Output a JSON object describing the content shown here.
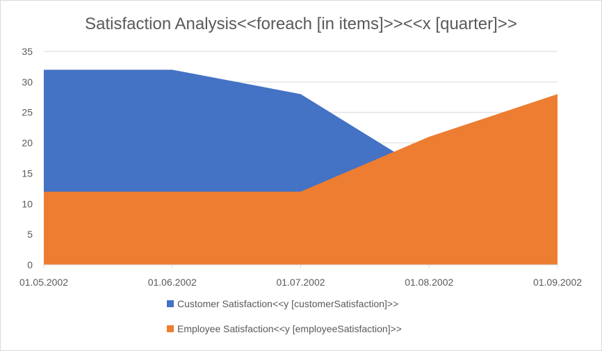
{
  "chart_data": {
    "type": "area",
    "title": "Satisfaction Analysis<<foreach [in items]>><<x [quarter]>>",
    "xlabel": "",
    "ylabel": "",
    "categories": [
      "01.05.2002",
      "01.06.2002",
      "01.07.2002",
      "01.08.2002",
      "01.09.2002"
    ],
    "series": [
      {
        "name": "Customer Satisfaction<<y [customerSatisfaction]>>",
        "values": [
          32,
          32,
          28,
          15,
          15
        ],
        "color": "#4472C4"
      },
      {
        "name": "Employee Satisfaction<<y [employeeSatisfaction]>>",
        "values": [
          12,
          12,
          12,
          21,
          28
        ],
        "color": "#ED7D31"
      }
    ],
    "ylim": [
      0,
      35
    ],
    "yticks": [
      0,
      5,
      10,
      15,
      20,
      25,
      30,
      35
    ],
    "grid": true,
    "legend_position": "bottom"
  }
}
